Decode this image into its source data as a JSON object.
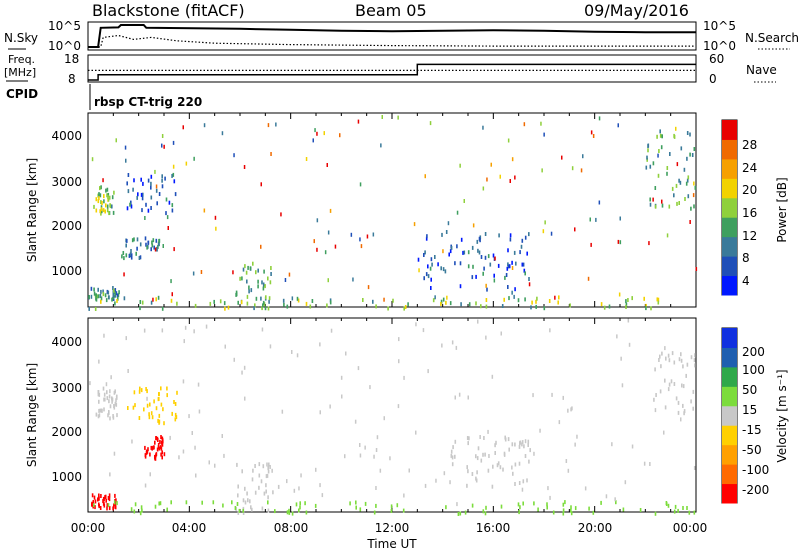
{
  "header": {
    "radar": "Blackstone (fitACF)",
    "beam": "Beam 05",
    "date": "09/May/2016"
  },
  "noise_panel": {
    "left_label": "N.Sky",
    "right_label": "N.Search",
    "left_ticks": [
      "10^5",
      "10^0"
    ],
    "right_ticks": [
      "10^5",
      "10^0"
    ]
  },
  "freq_panel": {
    "left_label_1": "Freq.",
    "left_label_2": "[MHz]",
    "right_label": "Nave",
    "left_ticks": [
      "18",
      "8"
    ],
    "right_ticks": [
      "60",
      "0"
    ]
  },
  "cpid": {
    "label": "CPID",
    "text": "rbsp CT-trig 220"
  },
  "power_panel": {
    "ylabel": "Slant Range [km]",
    "yticks": [
      "4000",
      "3000",
      "2000",
      "1000"
    ],
    "colorbar_label": "Power [dB]",
    "colorbar_ticks": [
      "28",
      "24",
      "20",
      "16",
      "12",
      "8",
      "4"
    ]
  },
  "velocity_panel": {
    "ylabel": "Slant Range [km]",
    "yticks": [
      "4000",
      "3000",
      "2000",
      "1000"
    ],
    "colorbar_label": "Velocity [m s⁻¹]",
    "colorbar_ticks": [
      "200",
      "100",
      "50",
      "15",
      "-15",
      "-50",
      "-100",
      "-200"
    ]
  },
  "xaxis": {
    "label": "Time UT",
    "ticks": [
      "00:00",
      "04:00",
      "08:00",
      "12:00",
      "16:00",
      "20:00",
      "00:00"
    ]
  },
  "colors": {
    "power_scale": [
      "#0018ff",
      "#1f4fb8",
      "#3a7a9a",
      "#3f9f5f",
      "#8fd03c",
      "#f2d200",
      "#f6a000",
      "#f06a00",
      "#e80000"
    ],
    "velocity_scale": [
      "#ff0000",
      "#ff6a00",
      "#ffa000",
      "#ffd000",
      "#c8c8c8",
      "#7cdc3c",
      "#2fa84a",
      "#1f5fb0",
      "#1030e0"
    ]
  },
  "chart_data": [
    {
      "type": "line",
      "panel": "noise",
      "x_range_hours": [
        0,
        24
      ],
      "yscale": "log",
      "ylim": [
        "10^0",
        "10^5"
      ],
      "series": [
        {
          "name": "N.Sky",
          "style": "solid",
          "points": [
            [
              0,
              0.2
            ],
            [
              0.4,
              0.2
            ],
            [
              0.5,
              4.2
            ],
            [
              1.2,
              4.3
            ],
            [
              1.3,
              4.8
            ],
            [
              2.2,
              4.8
            ],
            [
              2.3,
              4.2
            ],
            [
              6,
              4.0
            ],
            [
              8,
              3.8
            ],
            [
              10,
              3.6
            ],
            [
              12,
              3.5
            ],
            [
              14,
              3.6
            ],
            [
              16,
              3.7
            ],
            [
              18,
              3.6
            ],
            [
              20,
              3.4
            ],
            [
              22,
              3.3
            ],
            [
              24,
              3.3
            ]
          ]
        },
        {
          "name": "N.Search",
          "style": "dotted",
          "points": [
            [
              0,
              0.2
            ],
            [
              0.5,
              0.2
            ],
            [
              0.6,
              2.2
            ],
            [
              1.2,
              2.6
            ],
            [
              1.8,
              1.8
            ],
            [
              2.5,
              2.2
            ],
            [
              3.5,
              1.5
            ],
            [
              5,
              1.0
            ],
            [
              8,
              0.7
            ],
            [
              12,
              0.5
            ],
            [
              16,
              0.4
            ],
            [
              20,
              0.4
            ],
            [
              24,
              0.4
            ]
          ]
        }
      ]
    },
    {
      "type": "line",
      "panel": "freq",
      "x_range_hours": [
        0,
        24
      ],
      "left_ylim": [
        8,
        18
      ],
      "right_ylim": [
        0,
        60
      ],
      "series": [
        {
          "name": "Freq.",
          "style": "solid",
          "points": [
            [
              0,
              8
            ],
            [
              0.4,
              8
            ],
            [
              0.4,
              10.2
            ],
            [
              13,
              10.2
            ],
            [
              13,
              14.5
            ],
            [
              24,
              14.5
            ]
          ]
        },
        {
          "name": "Nave",
          "style": "dotted",
          "points": [
            [
              0,
              12
            ],
            [
              24,
              12
            ]
          ]
        }
      ]
    },
    {
      "type": "heatmap",
      "panel": "power",
      "x_range_hours": [
        0,
        24
      ],
      "ylim_km": [
        180,
        4500
      ],
      "colorbar_range_db": [
        0,
        30
      ],
      "regions": [
        {
          "t": [
            0.0,
            1.2
          ],
          "r": [
            350,
            650
          ],
          "value": 10
        },
        {
          "t": [
            0.2,
            1.0
          ],
          "r": [
            2300,
            2900
          ],
          "value": 14
        },
        {
          "t": [
            1.3,
            2.8
          ],
          "r": [
            1300,
            1800
          ],
          "value": 8
        },
        {
          "t": [
            1.5,
            3.5
          ],
          "r": [
            2300,
            3200
          ],
          "value": 6
        },
        {
          "t": [
            5.8,
            7.2
          ],
          "r": [
            180,
            1200
          ],
          "value": 12
        },
        {
          "t": [
            0.0,
            24.0
          ],
          "r": [
            180,
            450
          ],
          "value": 14
        },
        {
          "t": [
            13.0,
            17.5
          ],
          "r": [
            600,
            1900
          ],
          "value": 6
        },
        {
          "t": [
            22.0,
            24.0
          ],
          "r": [
            2400,
            4200
          ],
          "value": 12
        }
      ]
    },
    {
      "type": "heatmap",
      "panel": "velocity",
      "x_range_hours": [
        0,
        24
      ],
      "ylim_km": [
        180,
        4500
      ],
      "colorbar_range_ms": [
        -250,
        250
      ],
      "regions": [
        {
          "t": [
            0.1,
            1.1
          ],
          "r": [
            300,
            600
          ],
          "value": -220
        },
        {
          "t": [
            2.2,
            3.0
          ],
          "r": [
            1400,
            1900
          ],
          "value": -220
        },
        {
          "t": [
            0.3,
            1.2
          ],
          "r": [
            2300,
            3000
          ],
          "value": 0
        },
        {
          "t": [
            5.8,
            7.5
          ],
          "r": [
            200,
            1300
          ],
          "value": 0
        },
        {
          "t": [
            0.0,
            24.0
          ],
          "r": [
            180,
            450
          ],
          "value": 30
        },
        {
          "t": [
            14.0,
            17.5
          ],
          "r": [
            700,
            1900
          ],
          "value": 0
        },
        {
          "t": [
            22.3,
            24.0
          ],
          "r": [
            2400,
            3800
          ],
          "value": 0
        },
        {
          "t": [
            1.5,
            3.5
          ],
          "r": [
            2200,
            3000
          ],
          "value": -40
        }
      ]
    }
  ]
}
